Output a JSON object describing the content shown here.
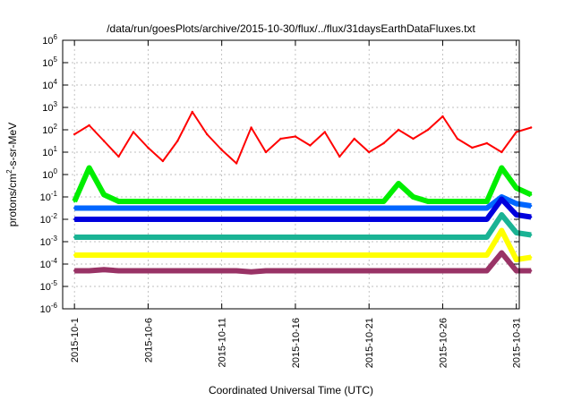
{
  "chart_data": {
    "type": "line",
    "title": "/data/run/goesPlots/archive/2015-10-30/flux/../flux/31daysEarthDataFluxes.txt",
    "xlabel": "Coordinated Universal Time (UTC)",
    "ylabel_main": "protons/cm",
    "ylabel_sup": "2",
    "ylabel_tail": "-s-sr-MeV",
    "y_scale": "log",
    "ylim_exponent": [
      -6,
      6
    ],
    "y_tick_labels": [
      {
        "base": "10",
        "exp": "-6"
      },
      {
        "base": "10",
        "exp": "-5"
      },
      {
        "base": "10",
        "exp": "-4"
      },
      {
        "base": "10",
        "exp": "-3"
      },
      {
        "base": "10",
        "exp": "-2"
      },
      {
        "base": "10",
        "exp": "-1"
      },
      {
        "base": "10",
        "exp": "0"
      },
      {
        "base": "10",
        "exp": "1"
      },
      {
        "base": "10",
        "exp": "2"
      },
      {
        "base": "10",
        "exp": "3"
      },
      {
        "base": "10",
        "exp": "4"
      },
      {
        "base": "10",
        "exp": "5"
      },
      {
        "base": "10",
        "exp": "6"
      }
    ],
    "x_range_days": [
      -0.8,
      30.2
    ],
    "x_ticks": [
      {
        "label": "2015-10-1",
        "day": 0
      },
      {
        "label": "2015-10-6",
        "day": 5
      },
      {
        "label": "2015-10-11",
        "day": 10
      },
      {
        "label": "2015-10-16",
        "day": 15
      },
      {
        "label": "2015-10-21",
        "day": 20
      },
      {
        "label": "2015-10-26",
        "day": 25
      },
      {
        "label": "2015-10-31",
        "day": 30
      }
    ],
    "grid": true,
    "series": [
      {
        "color": "#993366",
        "values_log10": [
          -4.3,
          -4.3,
          -4.25,
          -4.3,
          -4.3,
          -4.3,
          -4.3,
          -4.3,
          -4.3,
          -4.3,
          -4.3,
          -4.3,
          -4.35,
          -4.3,
          -4.3,
          -4.3,
          -4.3,
          -4.3,
          -4.3,
          -4.3,
          -4.3,
          -4.3,
          -4.3,
          -4.3,
          -4.3,
          -4.3,
          -4.3,
          -4.3,
          -4.3,
          -3.5,
          -4.3,
          -4.3
        ]
      },
      {
        "color": "#ffff00",
        "values_log10": [
          -3.6,
          -3.6,
          -3.6,
          -3.6,
          -3.6,
          -3.6,
          -3.6,
          -3.6,
          -3.6,
          -3.6,
          -3.6,
          -3.6,
          -3.6,
          -3.6,
          -3.6,
          -3.6,
          -3.6,
          -3.6,
          -3.6,
          -3.6,
          -3.6,
          -3.6,
          -3.6,
          -3.6,
          -3.6,
          -3.6,
          -3.6,
          -3.6,
          -3.6,
          -2.5,
          -3.8,
          -3.7
        ]
      },
      {
        "color": "#1ab394",
        "values_log10": [
          -2.8,
          -2.8,
          -2.8,
          -2.8,
          -2.8,
          -2.8,
          -2.8,
          -2.8,
          -2.8,
          -2.8,
          -2.8,
          -2.8,
          -2.8,
          -2.8,
          -2.8,
          -2.8,
          -2.8,
          -2.8,
          -2.8,
          -2.8,
          -2.8,
          -2.8,
          -2.8,
          -2.8,
          -2.8,
          -2.8,
          -2.8,
          -2.8,
          -2.8,
          -1.8,
          -2.6,
          -2.7
        ]
      },
      {
        "color": "#0066ff",
        "values_log10": [
          -1.5,
          -1.5,
          -1.5,
          -1.5,
          -1.5,
          -1.5,
          -1.5,
          -1.5,
          -1.5,
          -1.5,
          -1.5,
          -1.5,
          -1.5,
          -1.5,
          -1.5,
          -1.5,
          -1.5,
          -1.5,
          -1.5,
          -1.5,
          -1.5,
          -1.5,
          -1.5,
          -1.5,
          -1.5,
          -1.5,
          -1.5,
          -1.5,
          -1.5,
          -1.0,
          -1.3,
          -1.4
        ]
      },
      {
        "color": "#0000dd",
        "values_log10": [
          -2.0,
          -2.0,
          -2.0,
          -2.0,
          -2.0,
          -2.0,
          -2.0,
          -2.0,
          -2.0,
          -2.0,
          -2.0,
          -2.0,
          -2.0,
          -2.0,
          -2.0,
          -2.0,
          -2.0,
          -2.0,
          -2.0,
          -2.0,
          -2.0,
          -2.0,
          -2.0,
          -2.0,
          -2.0,
          -2.0,
          -2.0,
          -2.0,
          -2.0,
          -1.1,
          -1.8,
          -1.9
        ]
      },
      {
        "color": "#00ee00",
        "values_log10": [
          -1.2,
          0.3,
          -0.9,
          -1.2,
          -1.2,
          -1.2,
          -1.2,
          -1.2,
          -1.2,
          -1.2,
          -1.2,
          -1.2,
          -1.2,
          -1.2,
          -1.2,
          -1.2,
          -1.2,
          -1.2,
          -1.2,
          -1.2,
          -1.2,
          -1.2,
          -0.4,
          -1.0,
          -1.2,
          -1.2,
          -1.2,
          -1.2,
          -1.2,
          0.3,
          -0.6,
          -0.9
        ]
      },
      {
        "color": "#ff0000",
        "values_log10": [
          1.8,
          2.2,
          1.5,
          0.8,
          1.9,
          1.2,
          0.6,
          1.5,
          2.8,
          1.8,
          1.1,
          0.5,
          2.1,
          1.0,
          1.6,
          1.7,
          1.3,
          1.9,
          0.8,
          1.6,
          1.0,
          1.4,
          2.0,
          1.6,
          2.0,
          2.6,
          1.6,
          1.2,
          1.4,
          1.0,
          1.9,
          2.1
        ]
      }
    ]
  }
}
